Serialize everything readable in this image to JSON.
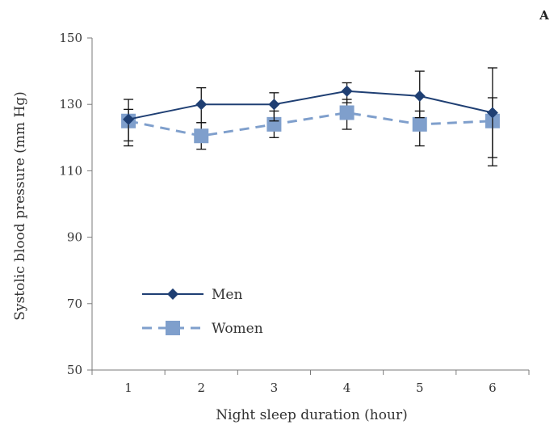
{
  "panel_label": "A",
  "chart_data": {
    "type": "line",
    "title": "",
    "xlabel": "Night sleep duration (hour)",
    "ylabel": "Systolic blood pressure (mm Hg)",
    "x": [
      1,
      2,
      3,
      4,
      5,
      6
    ],
    "x_tick_labels": [
      "1",
      "2",
      "3",
      "4",
      "5",
      "6"
    ],
    "ylim": [
      50,
      150
    ],
    "y_ticks": [
      50,
      70,
      90,
      110,
      130,
      150
    ],
    "y_tick_labels": [
      "50",
      "70",
      "90",
      "110",
      "130",
      "150"
    ],
    "grid": false,
    "legend_placement": "bottom-left",
    "series": [
      {
        "name": "Men",
        "color": "#1f3f73",
        "marker": "diamond",
        "line_style": "solid",
        "values": [
          125.5,
          130,
          130,
          134,
          132.5,
          127.5
        ],
        "error_low": [
          119,
          124.5,
          125,
          130.5,
          126,
          114
        ],
        "error_high": [
          131.5,
          135,
          133.5,
          136.5,
          140,
          141
        ]
      },
      {
        "name": "Women",
        "color": "#7f9fcc",
        "marker": "square",
        "line_style": "dashed",
        "values": [
          125,
          120.5,
          124,
          127.5,
          124,
          125
        ],
        "error_low": [
          117.5,
          116.5,
          120,
          122.5,
          117.5,
          111.5
        ],
        "error_high": [
          128.5,
          124.5,
          128,
          131.5,
          128,
          132
        ]
      }
    ]
  }
}
